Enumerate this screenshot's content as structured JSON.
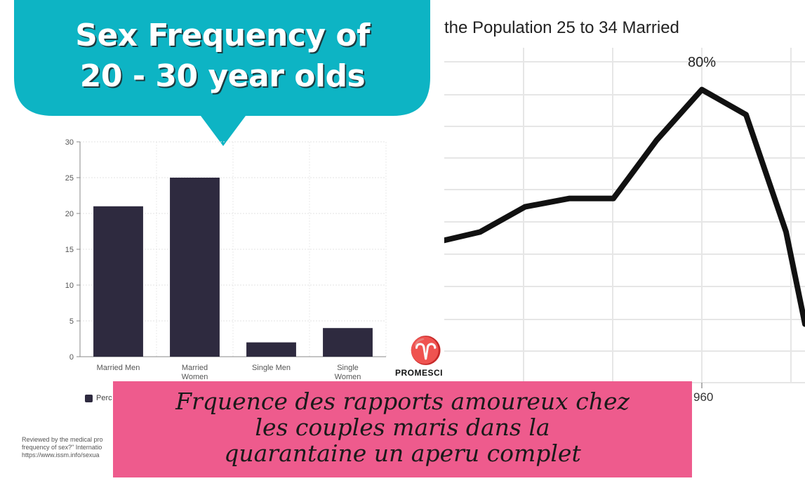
{
  "bubble": {
    "title_line1": "Sex Frequency of",
    "title_line2": "20 - 30 year olds",
    "color": "#0db4c4"
  },
  "chart_data": [
    {
      "type": "bar",
      "categories": [
        [
          "Married Men"
        ],
        [
          "Married",
          "Women"
        ],
        [
          "Single Men"
        ],
        [
          "Single",
          "Women"
        ]
      ],
      "values": [
        21,
        25,
        2,
        4
      ],
      "ylim": [
        0,
        30
      ],
      "yticks": [
        0,
        5,
        10,
        15,
        20,
        25,
        30
      ],
      "bar_color": "#2e2a3f",
      "legend": "Perc",
      "grid": true
    },
    {
      "type": "line",
      "title": "the Population 25 to 34 Married",
      "annotation": "80%",
      "x_tick_label": "960",
      "series": [
        {
          "values": [
            62,
            63,
            66,
            67,
            67,
            74,
            80,
            77,
            63,
            52
          ]
        }
      ],
      "ylim": [
        45,
        85
      ],
      "line_color": "#111111",
      "grid": true
    }
  ],
  "source_note": {
    "line1": "Reviewed by the medical pro",
    "line2": "frequency of sex?\" Internatio",
    "line3": "https://www.issm.info/sexua"
  },
  "logo": {
    "symbol": "♈",
    "text": "PROMESCI"
  },
  "banner": {
    "line1": "Frquence des rapports amoureux chez",
    "line2": "les couples maris dans la",
    "line3": "quarantaine  un aperu complet",
    "color": "#ee5b8d"
  }
}
